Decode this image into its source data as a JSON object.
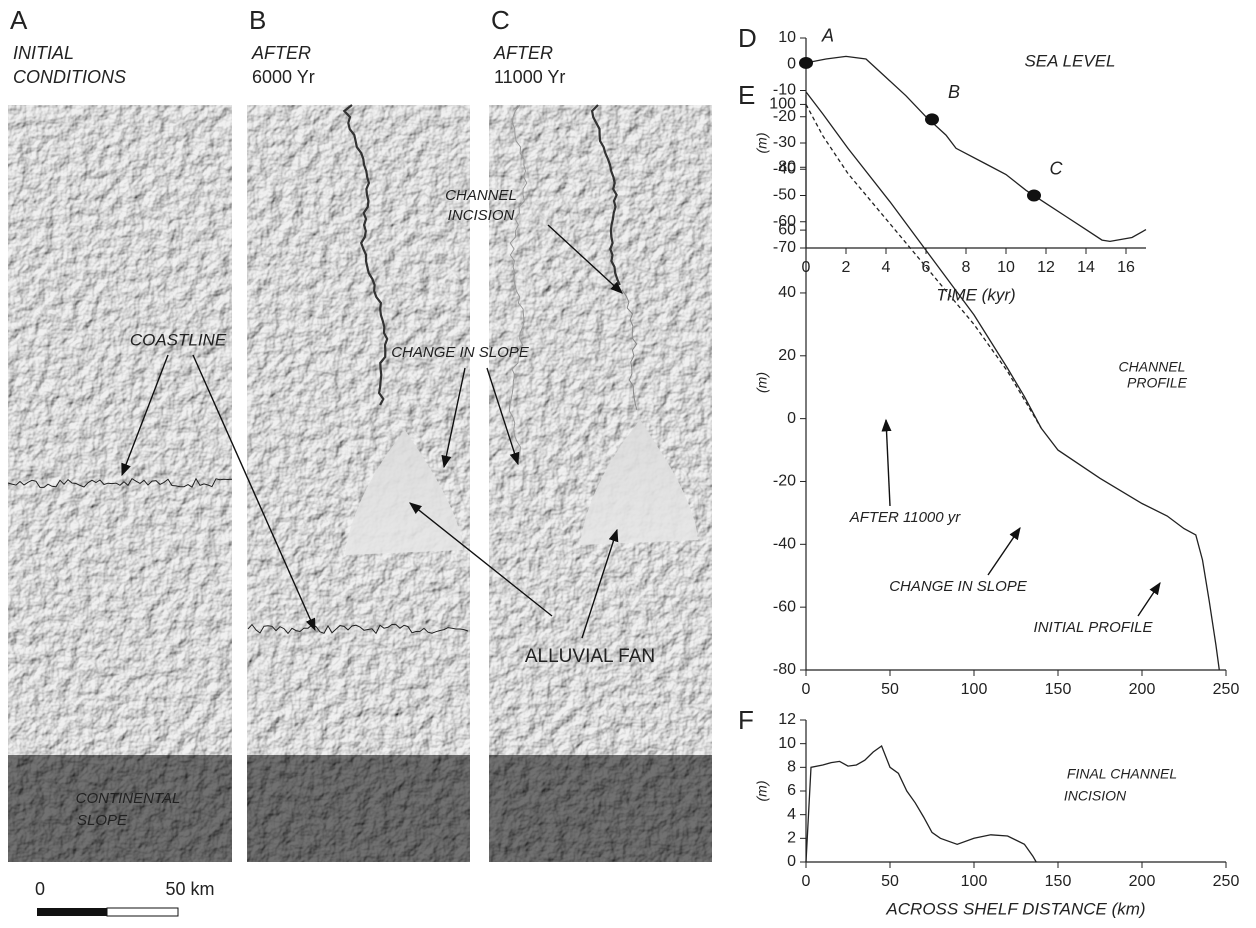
{
  "chart_data": [
    {
      "type": "line",
      "letter": "D",
      "title": "SEA LEVEL",
      "xlabel": "TIME (kyr)",
      "ylabel": "(m)",
      "series": [
        {
          "color": "#222222",
          "style": "solid",
          "x": [
            0,
            1,
            2,
            3,
            4,
            5,
            6,
            7,
            7.5,
            9,
            10,
            11,
            12,
            13,
            14,
            14.8,
            15.2,
            16.3,
            17
          ],
          "values": [
            0.5,
            2,
            3,
            2,
            -5,
            -12,
            -20,
            -27,
            -32,
            -38,
            -42,
            -48,
            -53,
            -58,
            -63,
            -67,
            -67.5,
            -66,
            -63
          ]
        }
      ],
      "markers": {
        "x": [
          0,
          6.3,
          11.4
        ],
        "values": [
          0.5,
          -21,
          -50
        ],
        "labels": [
          "A",
          "B",
          "C"
        ],
        "color": "#111111"
      },
      "xlim": [
        0,
        17
      ],
      "ylim": [
        -70,
        10
      ],
      "xticks": [
        0,
        2,
        4,
        6,
        8,
        10,
        12,
        14,
        16
      ],
      "yticks": [
        -70,
        -60,
        -50,
        -40,
        -30,
        -20,
        -10,
        0,
        10
      ]
    },
    {
      "type": "line",
      "letter": "E",
      "ylabel": "(m)",
      "annotations": [
        "CHANNEL",
        "PROFILE",
        "CHANGE IN SLOPE"
      ],
      "series": [
        {
          "name": "INITIAL PROFILE",
          "color": "#222222",
          "style": "solid",
          "x": [
            0,
            10,
            25,
            50,
            75,
            100,
            120,
            130,
            140,
            150,
            175,
            200,
            215,
            225,
            232,
            236,
            240,
            244,
            246
          ],
          "values": [
            104,
            97,
            86,
            69,
            51,
            33,
            16,
            7,
            -3,
            -10,
            -19,
            -27,
            -31,
            -35,
            -37,
            -45,
            -58,
            -72,
            -80
          ]
        },
        {
          "name": "AFTER 11000 yr",
          "color": "#222222",
          "style": "dashed",
          "x": [
            0,
            10,
            25,
            50,
            75,
            100,
            120,
            130,
            140
          ],
          "values": [
            100,
            90,
            78,
            62,
            46,
            30,
            15,
            6,
            -3
          ]
        }
      ],
      "xlim": [
        0,
        250
      ],
      "ylim": [
        -80,
        103
      ],
      "xticks": [
        0,
        50,
        100,
        150,
        200,
        250
      ],
      "yticks": [
        -80,
        -60,
        -40,
        -20,
        0,
        20,
        40,
        60,
        80,
        100
      ]
    },
    {
      "type": "line",
      "letter": "F",
      "xlabel": "ACROSS SHELF DISTANCE (km)",
      "ylabel": "(m)",
      "annotations": [
        "FINAL CHANNEL",
        "INCISION"
      ],
      "series": [
        {
          "color": "#222222",
          "style": "solid",
          "x": [
            0,
            3,
            10,
            15,
            20,
            25,
            30,
            35,
            40,
            45,
            50,
            55,
            60,
            65,
            70,
            75,
            80,
            90,
            100,
            110,
            120,
            130,
            135,
            137
          ],
          "values": [
            0,
            8,
            8.2,
            8.4,
            8.5,
            8.1,
            8.2,
            8.6,
            9.3,
            9.8,
            8,
            7.5,
            6,
            5,
            3.8,
            2.5,
            2,
            1.5,
            2,
            2.3,
            2.2,
            1.5,
            0.5,
            0
          ]
        }
      ],
      "xlim": [
        0,
        250
      ],
      "ylim": [
        0,
        12
      ],
      "xticks": [
        0,
        50,
        100,
        150,
        200,
        250
      ],
      "yticks": [
        0,
        2,
        4,
        6,
        8,
        10,
        12
      ]
    }
  ],
  "maps": {
    "panels": [
      {
        "letter": "A",
        "caption": [
          "INITIAL",
          "CONDITIONS"
        ]
      },
      {
        "letter": "B",
        "caption": [
          "AFTER",
          "6000 Yr"
        ]
      },
      {
        "letter": "C",
        "caption": [
          "AFTER",
          "11000 Yr"
        ]
      }
    ],
    "labels": {
      "coastline": "COASTLINE",
      "change_in_slope": "CHANGE IN SLOPE",
      "channel_incision": [
        "CHANNEL",
        "INCISION"
      ],
      "alluvial_fan": "ALLUVIAL FAN",
      "continental_slope": [
        "CONTINENTAL",
        "SLOPE"
      ]
    },
    "scale": {
      "zero": "0",
      "length": "50 km"
    }
  }
}
